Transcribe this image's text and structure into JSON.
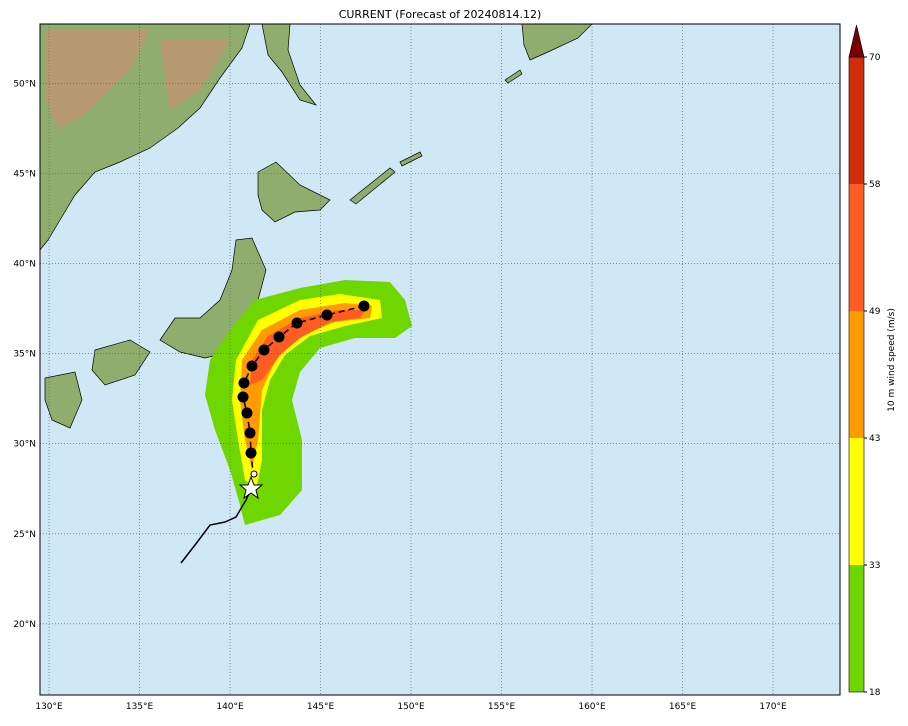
{
  "map": {
    "title": "CURRENT (Forecast of 20240814.12)",
    "lon_range": [
      129.5,
      173.7
    ],
    "lat_range": [
      16.05,
      53.3
    ],
    "lon_ticks": [
      {
        "value": 130,
        "label": "130°E"
      },
      {
        "value": 135,
        "label": "135°E"
      },
      {
        "value": 140,
        "label": "140°E"
      },
      {
        "value": 145,
        "label": "145°E"
      },
      {
        "value": 150,
        "label": "150°E"
      },
      {
        "value": 155,
        "label": "155°E"
      },
      {
        "value": 160,
        "label": "160°E"
      },
      {
        "value": 165,
        "label": "165°E"
      },
      {
        "value": 170,
        "label": "170°E"
      }
    ],
    "lat_ticks": [
      {
        "value": 20,
        "label": "20°N"
      },
      {
        "value": 25,
        "label": "25°N"
      },
      {
        "value": 30,
        "label": "30°N"
      },
      {
        "value": 35,
        "label": "35°N"
      },
      {
        "value": 40,
        "label": "40°N"
      },
      {
        "value": 45,
        "label": "45°N"
      },
      {
        "value": 50,
        "label": "50°N"
      }
    ]
  },
  "colorbar": {
    "label": "10 m wind speed (m/s)",
    "ticks": [
      18,
      33,
      43,
      49,
      58,
      70
    ],
    "colors": [
      "#6fd600",
      "#ffff00",
      "#ff9a00",
      "#ff5c24",
      "#d22d0a"
    ],
    "extend_color": "#7a0000"
  }
}
